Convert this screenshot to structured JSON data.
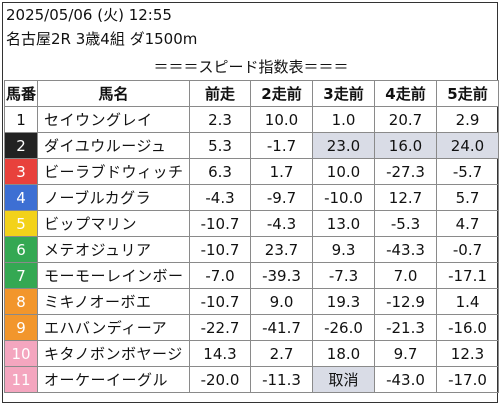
{
  "header": {
    "datetime": "2025/05/06 (火) 12:55",
    "race": "名古屋2R 3歳4組 ダ1500m"
  },
  "title": "＝＝＝スピード指数表＝＝＝",
  "columns": [
    "馬番",
    "馬名",
    "前走",
    "2走前",
    "3走前",
    "4走前",
    "5走前"
  ],
  "rows": [
    {
      "no": "1",
      "name": "セイウングレイ",
      "v": [
        "2.3",
        "10.0",
        "1.0",
        "20.7",
        "2.9"
      ]
    },
    {
      "no": "2",
      "name": "ダイユウルージュ",
      "v": [
        "5.3",
        "-1.7",
        "23.0",
        "16.0",
        "24.0"
      ]
    },
    {
      "no": "3",
      "name": "ビーラブドウィッチ",
      "v": [
        "6.3",
        "1.7",
        "10.0",
        "-27.3",
        "-5.7"
      ]
    },
    {
      "no": "4",
      "name": "ノーブルカグラ",
      "v": [
        "-4.3",
        "-9.7",
        "-10.0",
        "12.7",
        "5.7"
      ]
    },
    {
      "no": "5",
      "name": "ビップマリン",
      "v": [
        "-10.7",
        "-4.3",
        "13.0",
        "-5.3",
        "4.7"
      ]
    },
    {
      "no": "6",
      "name": "メテオジュリア",
      "v": [
        "-10.7",
        "23.7",
        "9.3",
        "-43.3",
        "-0.7"
      ]
    },
    {
      "no": "7",
      "name": "モーモーレインボー",
      "v": [
        "-7.0",
        "-39.3",
        "-7.3",
        "7.0",
        "-17.1"
      ]
    },
    {
      "no": "8",
      "name": "ミキノオーボエ",
      "v": [
        "-10.7",
        "9.0",
        "19.3",
        "-12.9",
        "1.4"
      ]
    },
    {
      "no": "9",
      "name": "エハバンディーア",
      "v": [
        "-22.7",
        "-41.7",
        "-26.0",
        "-21.3",
        "-16.0"
      ]
    },
    {
      "no": "10",
      "name": "キタノボンボヤージ",
      "v": [
        "14.3",
        "2.7",
        "18.0",
        "9.7",
        "12.3"
      ]
    },
    {
      "no": "11",
      "name": "オーケーイーグル",
      "v": [
        "-20.0",
        "-11.3",
        "取消",
        "-43.0",
        "-17.0"
      ]
    }
  ],
  "highlight_color": "#d9dce6",
  "gate_colors": [
    {
      "bg": "#ffffff",
      "fg": "#111111"
    },
    {
      "bg": "#222222",
      "fg": "#ffffff"
    },
    {
      "bg": "#e8413c",
      "fg": "#ffffff"
    },
    {
      "bg": "#3d6fd3",
      "fg": "#ffffff"
    },
    {
      "bg": "#f3d21a",
      "fg": "#ffffff"
    },
    {
      "bg": "#34a853",
      "fg": "#ffffff"
    },
    {
      "bg": "#34a853",
      "fg": "#ffffff"
    },
    {
      "bg": "#f2962c",
      "fg": "#ffffff"
    },
    {
      "bg": "#f2962c",
      "fg": "#ffffff"
    },
    {
      "bg": "#f4a6bf",
      "fg": "#ffffff"
    },
    {
      "bg": "#f4a6bf",
      "fg": "#ffffff"
    }
  ]
}
